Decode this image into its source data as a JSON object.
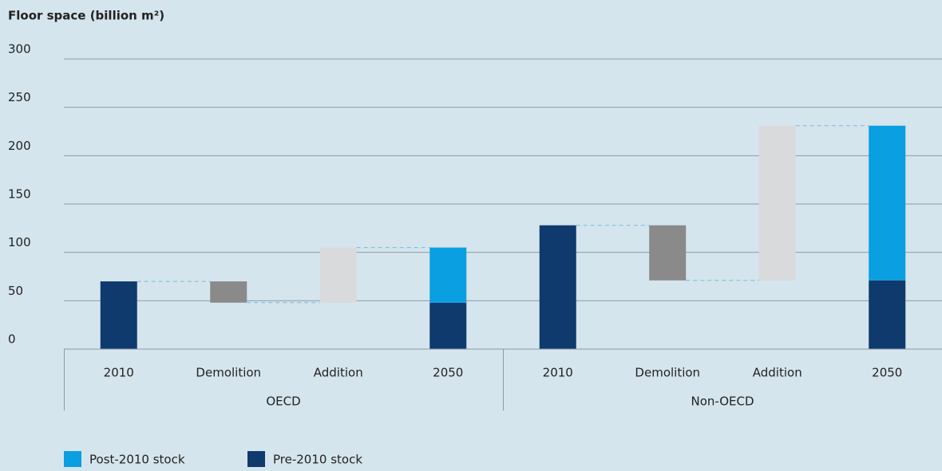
{
  "chart_data": {
    "type": "waterfall",
    "title": "Floor space (billion m²)",
    "groups": [
      "OECD",
      "Non-OECD"
    ],
    "categories": [
      "2010",
      "Demolition",
      "Addition",
      "2050"
    ],
    "series": [
      {
        "name": "Post-2010 stock",
        "color": "#0a9fe0",
        "values": [
          [
            null,
            null,
            null,
            57
          ],
          [
            null,
            null,
            null,
            160
          ]
        ]
      },
      {
        "name": "Pre-2010 stock",
        "color": "#0f3a6d",
        "values": [
          [
            70,
            null,
            null,
            48
          ],
          [
            128,
            null,
            null,
            71
          ]
        ]
      }
    ],
    "changes": [
      [
        -22,
        57
      ],
      [
        -57,
        160
      ]
    ],
    "change_colors": [
      "#8a8a8a",
      "#d9dadb"
    ],
    "ylim": [
      0,
      300
    ],
    "yticks": [
      0,
      50,
      100,
      150,
      200,
      250,
      300
    ],
    "grid": true
  }
}
